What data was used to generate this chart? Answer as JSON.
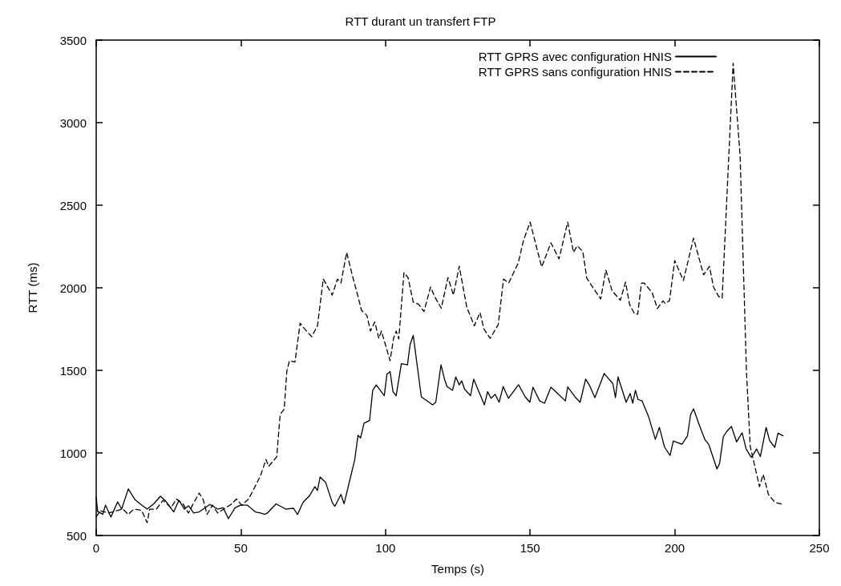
{
  "chart_data": {
    "type": "line",
    "title": "RTT durant un transfert FTP",
    "xlabel": "Temps (s)",
    "ylabel": "RTT (ms)",
    "xlim": [
      0,
      250
    ],
    "xticks": [
      0,
      50,
      100,
      150,
      200,
      250
    ],
    "ylim": [
      500,
      3500
    ],
    "yticks": [
      500,
      1000,
      1500,
      2000,
      2500,
      3000,
      3500
    ],
    "grid": false,
    "legend": "top right",
    "marker": "none",
    "series": [
      {
        "name": "RTT GPRS avec configuration HNIS",
        "color": "#000000",
        "line_style": "solid",
        "x": [
          0,
          0.5,
          2.3,
          3.2,
          5.1,
          7.4,
          8.8,
          11.1,
          13.4,
          15.7,
          17.6,
          19.9,
          22.2,
          24,
          26.8,
          28.6,
          30.5,
          31.9,
          33.7,
          35.6,
          39.3,
          42,
          43.9,
          45.7,
          48,
          49.9,
          52.2,
          55,
          56.8,
          58.2,
          59.1,
          62.2,
          65.5,
          68.2,
          69.6,
          71.5,
          73.7,
          75.6,
          76.5,
          77.4,
          79.3,
          81.6,
          82.5,
          84.6,
          85.7,
          87.6,
          89.4,
          90.5,
          91.4,
          92.6,
          94.5,
          95.6,
          96.8,
          99.6,
          100.5,
          101.6,
          102.6,
          103.7,
          105.5,
          107.6,
          108.5,
          109.6,
          112.4,
          116.3,
          117.4,
          119.2,
          120.4,
          121.3,
          123.2,
          124.3,
          125.5,
          126.4,
          127.3,
          129.4,
          130.5,
          134.2,
          135.3,
          136.5,
          137.9,
          139.3,
          140.7,
          142.5,
          146,
          148.3,
          149.9,
          151,
          153.3,
          155,
          157.2,
          159.5,
          162.2,
          163,
          165.5,
          167.3,
          169.2,
          170.6,
          172.4,
          175.6,
          178.6,
          179.5,
          180.4,
          183.2,
          184.6,
          185.5,
          186.4,
          187.3,
          188.7,
          191,
          193.3,
          194.7,
          196.5,
          198.4,
          199.5,
          202.5,
          204.4,
          205.5,
          206.5,
          208.6,
          210.4,
          211.8,
          214.6,
          215.5,
          216.8,
          218,
          219.6,
          221.4,
          223.3,
          224.7,
          226.5,
          228.3,
          229.6,
          231.6,
          232.8,
          234.6,
          235.7,
          237.4
        ],
        "values": [
          733,
          646,
          628,
          684,
          612,
          704,
          660,
          782,
          717,
          684,
          660,
          692,
          738,
          709,
          643,
          713,
          660,
          680,
          636,
          643,
          688,
          660,
          668,
          602,
          668,
          684,
          684,
          643,
          636,
          628,
          635,
          692,
          660,
          665,
          627,
          700,
          740,
          796,
          773,
          854,
          822,
          700,
          676,
          749,
          692,
          830,
          961,
          1107,
          1091,
          1180,
          1196,
          1379,
          1412,
          1347,
          1476,
          1493,
          1371,
          1347,
          1541,
          1533,
          1655,
          1712,
          1340,
          1291,
          1307,
          1533,
          1447,
          1402,
          1379,
          1460,
          1412,
          1436,
          1387,
          1347,
          1447,
          1291,
          1371,
          1331,
          1355,
          1307,
          1402,
          1331,
          1413,
          1340,
          1307,
          1398,
          1315,
          1301,
          1398,
          1360,
          1315,
          1400,
          1340,
          1307,
          1447,
          1407,
          1335,
          1481,
          1420,
          1335,
          1460,
          1307,
          1360,
          1301,
          1379,
          1324,
          1315,
          1218,
          1082,
          1155,
          1034,
          985,
          1072,
          1053,
          1102,
          1233,
          1267,
          1164,
          1082,
          1050,
          903,
          936,
          1098,
          1131,
          1160,
          1067,
          1122,
          1024,
          973,
          1024,
          978,
          1155,
          1075,
          1034,
          1120,
          1104
        ]
      },
      {
        "name": "RTT GPRS sans configuration HNIS",
        "color": "#000000",
        "line_style": "dashed",
        "x": [
          0,
          1.4,
          4.2,
          7,
          9.2,
          11.1,
          13,
          15.7,
          17.6,
          18.5,
          20.8,
          23.1,
          25.9,
          27.7,
          30,
          31.9,
          33.3,
          35.6,
          37,
          38.3,
          40.2,
          42,
          44.8,
          46.6,
          48.5,
          50.3,
          52.7,
          54,
          56.8,
          58.7,
          59.6,
          62.4,
          63.6,
          65,
          65.9,
          66.8,
          68.7,
          70.5,
          71.9,
          74.5,
          76.5,
          78.5,
          81.6,
          83.4,
          84.6,
          86.6,
          88.5,
          90.3,
          91.7,
          93.6,
          94.8,
          96.3,
          97.7,
          98.6,
          100,
          101.6,
          102.8,
          103.7,
          104.6,
          106.4,
          107.8,
          109.6,
          111.5,
          113.3,
          115.6,
          117,
          119.3,
          121.6,
          123.5,
          125.5,
          128.1,
          130.7,
          132.7,
          134,
          136.2,
          139,
          140.8,
          142.6,
          145.9,
          147.7,
          150,
          154,
          157.2,
          160,
          163,
          165,
          166.3,
          168.2,
          169.6,
          171.8,
          174.4,
          176.2,
          178.4,
          181.2,
          183,
          184.4,
          186.2,
          187.2,
          188.5,
          189.4,
          192.2,
          194,
          195.9,
          196.8,
          198.2,
          200,
          203,
          206.5,
          210,
          212,
          213.4,
          215.2,
          216.4,
          220.2,
          222.6,
          224.8,
          226.1,
          229.3,
          230.6,
          232.4,
          234.7,
          237
        ],
        "values": [
          612,
          650,
          636,
          650,
          660,
          628,
          660,
          652,
          578,
          660,
          660,
          713,
          668,
          721,
          692,
          636,
          684,
          757,
          717,
          628,
          684,
          636,
          668,
          688,
          721,
          684,
          721,
          765,
          862,
          960,
          919,
          976,
          1233,
          1265,
          1495,
          1558,
          1550,
          1786,
          1754,
          1704,
          1770,
          2053,
          1956,
          2053,
          2029,
          2214,
          2078,
          1961,
          1864,
          1832,
          1738,
          1793,
          1694,
          1738,
          1655,
          1558,
          1694,
          1738,
          1690,
          2092,
          2062,
          1913,
          1900,
          1856,
          2005,
          1947,
          1876,
          2062,
          1956,
          2131,
          1883,
          1770,
          1850,
          1752,
          1694,
          1777,
          2053,
          2029,
          2150,
          2286,
          2398,
          2126,
          2272,
          2175,
          2398,
          2214,
          2254,
          2221,
          2058,
          2000,
          1932,
          2107,
          1980,
          1925,
          2034,
          1898,
          1840,
          1840,
          2029,
          2029,
          1971,
          1874,
          1920,
          1905,
          1922,
          2165,
          2044,
          2300,
          2078,
          2130,
          2005,
          1947,
          1937,
          3360,
          2800,
          1495,
          1040,
          796,
          870,
          748,
          700,
          690
        ]
      }
    ]
  }
}
